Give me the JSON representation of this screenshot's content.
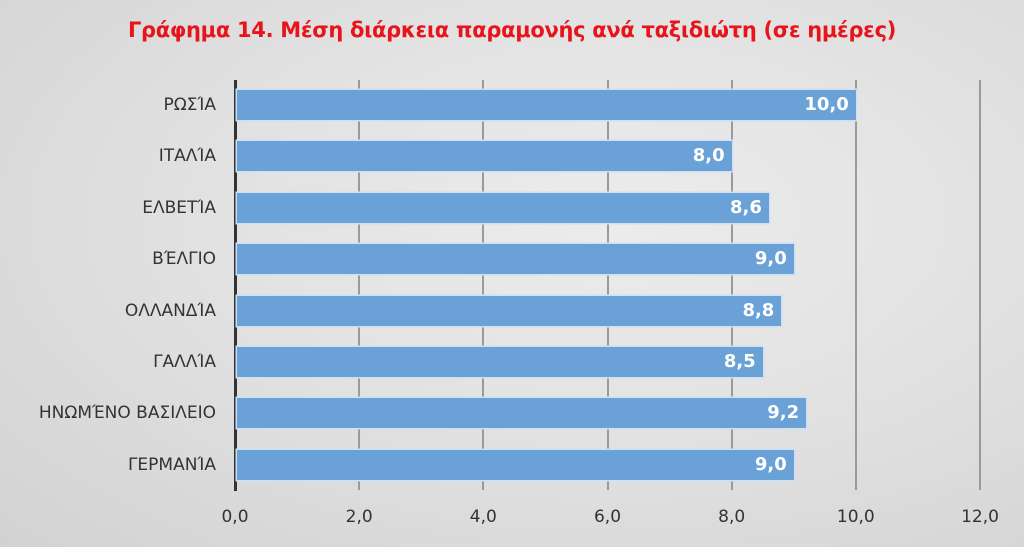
{
  "chart_data": {
    "type": "bar",
    "orientation": "horizontal",
    "title": "Γράφημα 14. Μέση διάρκεια παραμονής ανά ταξιδιώτη (σε ημέρες)",
    "categories": [
      "ΡΩΣΊΑ",
      "ΙΤΑΛΊΑ",
      "ΕΛΒΕΤΊΑ",
      "ΒΈΛΓΙΟ",
      "ΟΛΛΑΝΔΊΑ",
      "ΓΑΛΛΊΑ",
      "ΗΝΩΜΈΝΟ ΒΑΣΙΛΕΙΟ",
      "ΓΕΡΜΑΝΊΑ"
    ],
    "values": [
      10.0,
      8.0,
      8.6,
      9.0,
      8.8,
      8.5,
      9.2,
      9.0
    ],
    "value_labels": [
      "10,0",
      "8,0",
      "8,6",
      "9,0",
      "8,8",
      "8,5",
      "9,2",
      "9,0"
    ],
    "xlabel": "",
    "ylabel": "",
    "xlim": [
      0,
      12
    ],
    "x_ticks": [
      "0,0",
      "2,0",
      "4,0",
      "6,0",
      "8,0",
      "10,0",
      "12,0"
    ],
    "grid": true,
    "legend": null,
    "colors": {
      "bar": "#6aa1d6",
      "title": "#e8141b",
      "axis": "#333333",
      "grid": "#9a9a9a"
    }
  }
}
